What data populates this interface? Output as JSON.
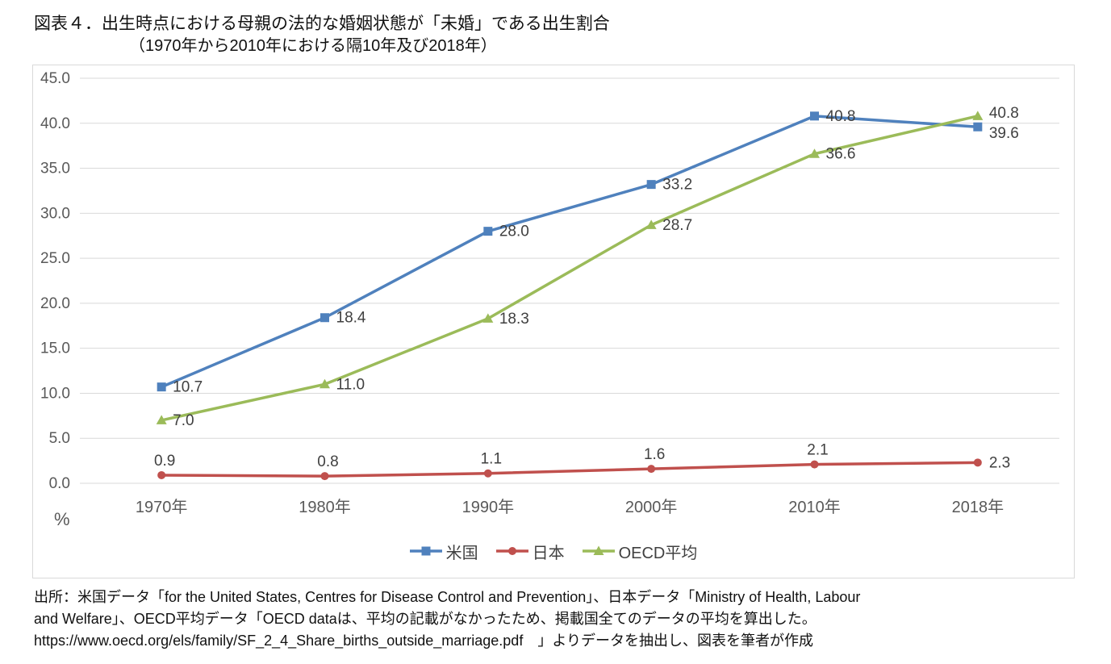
{
  "header": {
    "title": "図表４．出生時点における母親の法的な婚姻状態が「未婚」である出生割合",
    "subtitle": "（1970年から2010年における隔10年及び2018年）"
  },
  "chart_data": {
    "type": "line",
    "title": "図表４．出生時点における母親の法的な婚姻状態が「未婚」である出生割合",
    "subtitle": "（1970年から2010年における隔10年及び2018年）",
    "categories": [
      "1970年",
      "1980年",
      "1990年",
      "2000年",
      "2010年",
      "2018年"
    ],
    "series": [
      {
        "name": "米国",
        "color": "#4F81BD",
        "marker": "square",
        "values": [
          10.7,
          18.4,
          28.0,
          33.2,
          40.8,
          39.6
        ]
      },
      {
        "name": "日本",
        "color": "#C0504D",
        "marker": "circle",
        "values": [
          0.9,
          0.8,
          1.1,
          1.6,
          2.1,
          2.3
        ]
      },
      {
        "name": "OECD平均",
        "color": "#9BBB59",
        "marker": "triangle",
        "values": [
          7.0,
          11.0,
          18.3,
          28.7,
          36.6,
          40.8
        ]
      }
    ],
    "ylim": [
      0,
      45
    ],
    "ytick_step": 5,
    "ylabel": "%",
    "grid": true,
    "legend_position": "bottom",
    "data_labels": true,
    "axis_text_color": "#595959",
    "grid_color": "#d9d9d9",
    "label_text_color": "#404040"
  },
  "source": {
    "line1": "出所：米国データ「for the United States, Centres for Disease Control and Prevention」、日本データ「Ministry of Health, Labour",
    "line2": "and Welfare」、OECD平均データ「OECD dataは、平均の記載がなかったため、掲載国全てのデータの平均を算出した。",
    "line3": "https://www.oecd.org/els/family/SF_2_4_Share_births_outside_marriage.pdf　」よりデータを抽出し、図表を筆者が作成"
  }
}
